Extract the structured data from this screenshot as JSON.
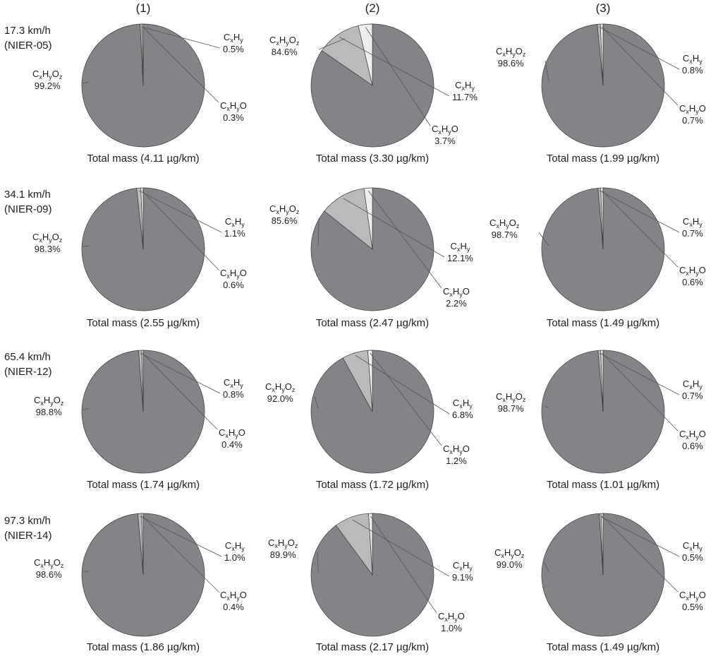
{
  "column_headers": [
    "(1)",
    "(2)",
    "(3)"
  ],
  "formula_colors": {
    "CxHyOz": "#838487",
    "CxHy": "#b9babb",
    "CxHyO": "#eeeeee"
  },
  "chart_data": {
    "type": "pie",
    "rows": [
      {
        "speed": "17.3 km/h",
        "cycle": "(NIER-05)",
        "charts": [
          {
            "column": "(1)",
            "total": "Total mass (4.11 µg/km)",
            "slices": [
              {
                "formula": "CxHyOz",
                "value": 99.2,
                "label": "99.2%"
              },
              {
                "formula": "CxHy",
                "value": 0.5,
                "label": "0.5%"
              },
              {
                "formula": "CxHyO",
                "value": 0.3,
                "label": "0.3%"
              }
            ]
          },
          {
            "column": "(2)",
            "total": "Total mass (3.30 µg/km)",
            "slices": [
              {
                "formula": "CxHyOz",
                "value": 84.6,
                "label": "84.6%"
              },
              {
                "formula": "CxHy",
                "value": 11.7,
                "label": "11.7%"
              },
              {
                "formula": "CxHyO",
                "value": 3.7,
                "label": "3.7%"
              }
            ]
          },
          {
            "column": "(3)",
            "total": "Total mass (1.99 µg/km)",
            "slices": [
              {
                "formula": "CxHyOz",
                "value": 98.6,
                "label": "98.6%"
              },
              {
                "formula": "CxHy",
                "value": 0.8,
                "label": "0.8%"
              },
              {
                "formula": "CxHyO",
                "value": 0.7,
                "label": "0.7%"
              }
            ]
          }
        ]
      },
      {
        "speed": "34.1 km/h",
        "cycle": "(NIER-09)",
        "charts": [
          {
            "column": "(1)",
            "total": "Total mass (2.55 µg/km)",
            "slices": [
              {
                "formula": "CxHyOz",
                "value": 98.3,
                "label": "98.3%"
              },
              {
                "formula": "CxHy",
                "value": 1.1,
                "label": "1.1%"
              },
              {
                "formula": "CxHyO",
                "value": 0.6,
                "label": "0.6%"
              }
            ]
          },
          {
            "column": "(2)",
            "total": "Total mass (2.47 µg/km)",
            "slices": [
              {
                "formula": "CxHyOz",
                "value": 85.6,
                "label": "85.6%"
              },
              {
                "formula": "CxHy",
                "value": 12.1,
                "label": "12.1%"
              },
              {
                "formula": "CxHyO",
                "value": 2.2,
                "label": "2.2%"
              }
            ]
          },
          {
            "column": "(3)",
            "total": "Total mass (1.49 µg/km)",
            "slices": [
              {
                "formula": "CxHyOz",
                "value": 98.7,
                "label": "98.7%"
              },
              {
                "formula": "CxHy",
                "value": 0.7,
                "label": "0.7%"
              },
              {
                "formula": "CxHyO",
                "value": 0.6,
                "label": "0.6%"
              }
            ]
          }
        ]
      },
      {
        "speed": "65.4 km/h",
        "cycle": "(NIER-12)",
        "charts": [
          {
            "column": "(1)",
            "total": "Total mass (1.74 µg/km)",
            "slices": [
              {
                "formula": "CxHyOz",
                "value": 98.8,
                "label": "98.8%"
              },
              {
                "formula": "CxHy",
                "value": 0.8,
                "label": "0.8%"
              },
              {
                "formula": "CxHyO",
                "value": 0.4,
                "label": "0.4%"
              }
            ]
          },
          {
            "column": "(2)",
            "total": "Total mass (1.72 µg/km)",
            "slices": [
              {
                "formula": "CxHyOz",
                "value": 92.0,
                "label": "92.0%"
              },
              {
                "formula": "CxHy",
                "value": 6.8,
                "label": "6.8%"
              },
              {
                "formula": "CxHyO",
                "value": 1.2,
                "label": "1.2%"
              }
            ]
          },
          {
            "column": "(3)",
            "total": "Total mass (1.01 µg/km)",
            "slices": [
              {
                "formula": "CxHyOz",
                "value": 98.7,
                "label": "98.7%"
              },
              {
                "formula": "CxHy",
                "value": 0.7,
                "label": "0.7%"
              },
              {
                "formula": "CxHyO",
                "value": 0.6,
                "label": "0.6%"
              }
            ]
          }
        ]
      },
      {
        "speed": "97.3 km/h",
        "cycle": "(NIER-14)",
        "charts": [
          {
            "column": "(1)",
            "total": "Total mass (1.86 µg/km)",
            "slices": [
              {
                "formula": "CxHyOz",
                "value": 98.6,
                "label": "98.6%"
              },
              {
                "formula": "CxHy",
                "value": 1.0,
                "label": "1.0%"
              },
              {
                "formula": "CxHyO",
                "value": 0.4,
                "label": "0.4%"
              }
            ]
          },
          {
            "column": "(2)",
            "total": "Total mass (2.17 µg/km)",
            "slices": [
              {
                "formula": "CxHyOz",
                "value": 89.9,
                "label": "89.9%"
              },
              {
                "formula": "CxHy",
                "value": 9.1,
                "label": "9.1%"
              },
              {
                "formula": "CxHyO",
                "value": 1.0,
                "label": "1.0%"
              }
            ]
          },
          {
            "column": "(3)",
            "total": "Total mass (1.49 µg/km)",
            "slices": [
              {
                "formula": "CxHyOz",
                "value": 99.0,
                "label": "99.0%"
              },
              {
                "formula": "CxHy",
                "value": 0.5,
                "label": "0.5%"
              },
              {
                "formula": "CxHyO",
                "value": 0.5,
                "label": "0.5%"
              }
            ]
          }
        ]
      }
    ]
  }
}
